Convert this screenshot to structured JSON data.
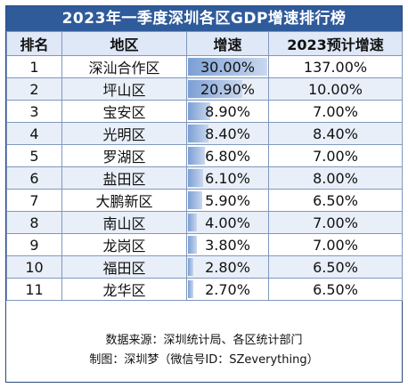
{
  "chart_data": {
    "type": "table",
    "title": "2023年一季度深圳各区GDP增速排行榜",
    "columns": [
      "排名",
      "地区",
      "增速",
      "2023预计增速"
    ],
    "rows": [
      {
        "rank": "1",
        "region": "深汕合作区",
        "growth": "30.00%",
        "growth_value": 30.0,
        "forecast": "137.00%"
      },
      {
        "rank": "2",
        "region": "坪山区",
        "growth": "20.90%",
        "growth_value": 20.9,
        "forecast": "10.00%"
      },
      {
        "rank": "3",
        "region": "宝安区",
        "growth": "8.90%",
        "growth_value": 8.9,
        "forecast": "7.00%"
      },
      {
        "rank": "4",
        "region": "光明区",
        "growth": "8.40%",
        "growth_value": 8.4,
        "forecast": "8.40%"
      },
      {
        "rank": "5",
        "region": "罗湖区",
        "growth": "6.80%",
        "growth_value": 6.8,
        "forecast": "7.00%"
      },
      {
        "rank": "6",
        "region": "盐田区",
        "growth": "6.10%",
        "growth_value": 6.1,
        "forecast": "8.00%"
      },
      {
        "rank": "7",
        "region": "大鹏新区",
        "growth": "5.90%",
        "growth_value": 5.9,
        "forecast": "6.50%"
      },
      {
        "rank": "8",
        "region": "南山区",
        "growth": "4.00%",
        "growth_value": 4.0,
        "forecast": "7.00%"
      },
      {
        "rank": "9",
        "region": "龙岗区",
        "growth": "3.80%",
        "growth_value": 3.8,
        "forecast": "7.00%"
      },
      {
        "rank": "10",
        "region": "福田区",
        "growth": "2.80%",
        "growth_value": 2.8,
        "forecast": "6.50%"
      },
      {
        "rank": "11",
        "region": "龙华区",
        "growth": "2.70%",
        "growth_value": 2.7,
        "forecast": "6.50%"
      }
    ],
    "bar_max": 30.0,
    "colors": {
      "header_bg": "#2f5b9b",
      "bar": "#7c9fd4",
      "stripe": "#e9eff8"
    }
  },
  "footer": {
    "source": "数据来源：深圳统计局、各区统计部门",
    "credit": "制图：深圳梦（微信号ID：SZeverything）"
  }
}
